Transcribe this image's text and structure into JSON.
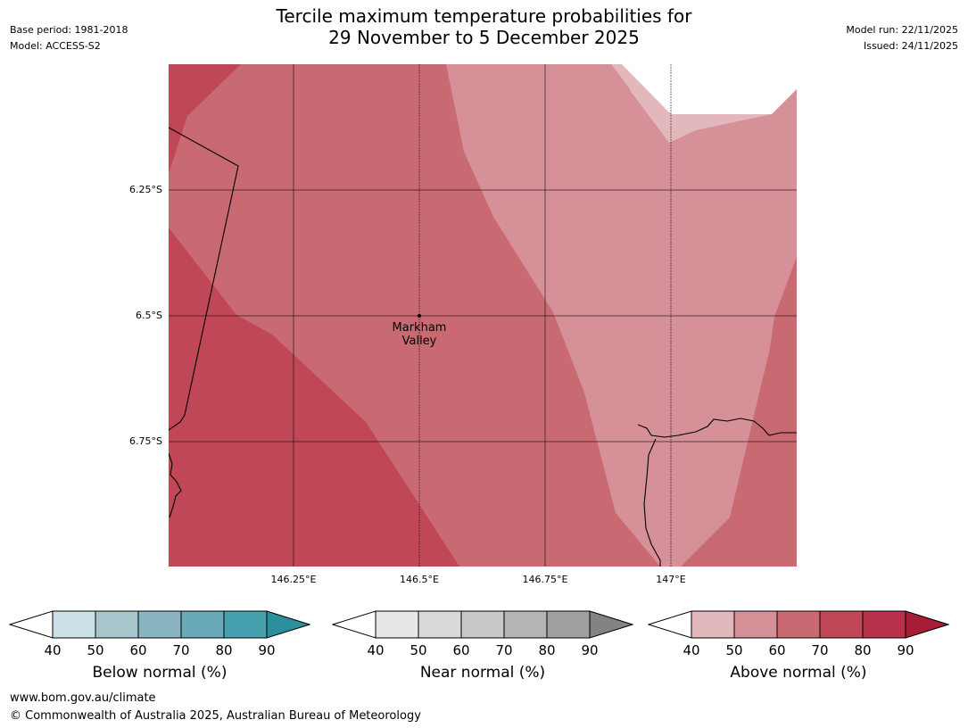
{
  "header": {
    "title_line1": "Tercile maximum temperature probabilities for",
    "title_line2": "29 November to 5 December 2025",
    "base_period": "Base period: 1981-2018",
    "model": "Model: ACCESS-S2",
    "model_run": "Model run: 22/11/2025",
    "issued": "Issued: 24/11/2025"
  },
  "map": {
    "lat_labels": [
      "6.25°S",
      "6.5°S",
      "6.75°S"
    ],
    "lon_labels": [
      "146.25°E",
      "146.5°E",
      "146.75°E",
      "147°E"
    ],
    "place_name_line1": "Markham",
    "place_name_line2": "Valley",
    "colors": {
      "above_80": "#c04755",
      "above_70": "#c96a73",
      "above_60": "#d59197",
      "above_50": "#e2b8bc"
    }
  },
  "legends": [
    {
      "caption": "Below normal (%)",
      "ticks": [
        "40",
        "50",
        "60",
        "70",
        "80",
        "90"
      ],
      "colors": [
        "#cce2e7",
        "#a7c6cc",
        "#89b5c1",
        "#6aaab8",
        "#45a1ae",
        "#2b8f9e"
      ]
    },
    {
      "caption": "Near normal (%)",
      "ticks": [
        "40",
        "50",
        "60",
        "70",
        "80",
        "90"
      ],
      "colors": [
        "#e6e6e6",
        "#d9d9d9",
        "#c9c9c9",
        "#b5b5b5",
        "#a0a0a0",
        "#838383"
      ]
    },
    {
      "caption": "Above normal (%)",
      "ticks": [
        "40",
        "50",
        "60",
        "70",
        "80",
        "90"
      ],
      "colors": [
        "#e2b8bc",
        "#d59197",
        "#c96a73",
        "#c04755",
        "#b9304a",
        "#a81c38"
      ]
    }
  ],
  "footer": {
    "url": "www.bom.gov.au/climate",
    "copyright": "© Commonwealth of Australia 2025, Australian Bureau of Meteorology"
  }
}
